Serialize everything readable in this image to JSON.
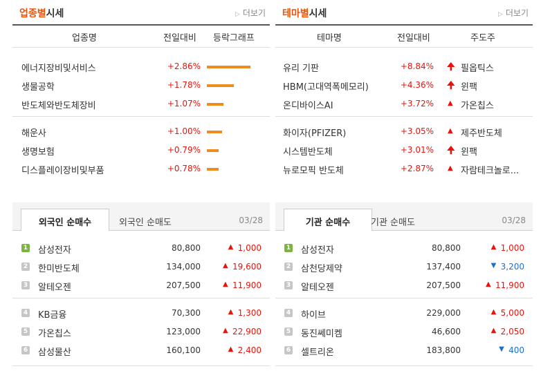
{
  "sector": {
    "title_accent": "업종별",
    "title_rest": "시세",
    "more": "더보기",
    "headers": {
      "name": "업종명",
      "change": "전일대비",
      "graph": "등락그래프"
    },
    "rows": [
      {
        "name": "에너지장비및서비스",
        "change": "+2.86%",
        "bar": 2.86
      },
      {
        "name": "생물공학",
        "change": "+1.78%",
        "bar": 1.78
      },
      {
        "name": "반도체와반도체장비",
        "change": "+1.07%",
        "bar": 1.07
      },
      {
        "name": "해운사",
        "change": "+1.00%",
        "bar": 1.0
      },
      {
        "name": "생명보험",
        "change": "+0.79%",
        "bar": 0.79
      },
      {
        "name": "디스플레이장비및부품",
        "change": "+0.78%",
        "bar": 0.78
      }
    ]
  },
  "theme": {
    "title_accent": "테마별",
    "title_rest": "시세",
    "more": "더보기",
    "headers": {
      "name": "테마명",
      "change": "전일대비",
      "leader": "주도주"
    },
    "rows": [
      {
        "name": "유리 기판",
        "change": "+8.84%",
        "icon": "up-arrow-icon",
        "leader": "필옵틱스"
      },
      {
        "name": "HBM(고대역폭메모리)",
        "change": "+4.36%",
        "icon": "up-arrow-icon",
        "leader": "윈팩"
      },
      {
        "name": "온디바이스AI",
        "change": "+3.72%",
        "icon": "up-triangle-icon",
        "leader": "가온칩스"
      },
      {
        "name": "화이자(PFIZER)",
        "change": "+3.05%",
        "icon": "up-triangle-icon",
        "leader": "제주반도체"
      },
      {
        "name": "시스템반도체",
        "change": "+3.01%",
        "icon": "up-arrow-icon",
        "leader": "윈팩"
      },
      {
        "name": "뉴로모픽 반도체",
        "change": "+2.87%",
        "icon": "up-triangle-icon",
        "leader": "자람테크놀로..."
      }
    ]
  },
  "foreign": {
    "tab_active": "외국인 순매수",
    "tab_inactive": "외국인 순매도",
    "date": "03/28",
    "rows": [
      {
        "rank": "1",
        "name": "삼성전자",
        "price": "80,800",
        "dir": "up",
        "change": "1,000"
      },
      {
        "rank": "2",
        "name": "한미반도체",
        "price": "134,000",
        "dir": "up",
        "change": "19,600"
      },
      {
        "rank": "3",
        "name": "알테오젠",
        "price": "207,500",
        "dir": "up",
        "change": "11,900"
      },
      {
        "rank": "4",
        "name": "KB금융",
        "price": "70,300",
        "dir": "up",
        "change": "1,300"
      },
      {
        "rank": "5",
        "name": "가온칩스",
        "price": "123,000",
        "dir": "up",
        "change": "22,900"
      },
      {
        "rank": "6",
        "name": "삼성물산",
        "price": "160,100",
        "dir": "up",
        "change": "2,400"
      }
    ]
  },
  "institution": {
    "tab_active": "기관 순매수",
    "tab_inactive": "기관 순매도",
    "date": "03/28",
    "rows": [
      {
        "rank": "1",
        "name": "삼성전자",
        "price": "80,800",
        "dir": "up",
        "change": "1,000"
      },
      {
        "rank": "2",
        "name": "삼천당제약",
        "price": "137,400",
        "dir": "down",
        "change": "3,200"
      },
      {
        "rank": "3",
        "name": "알테오젠",
        "price": "207,500",
        "dir": "up",
        "change": "11,900"
      },
      {
        "rank": "4",
        "name": "하이브",
        "price": "229,000",
        "dir": "up",
        "change": "5,000"
      },
      {
        "rank": "5",
        "name": "동진쎄미켐",
        "price": "46,600",
        "dir": "up",
        "change": "2,050"
      },
      {
        "rank": "6",
        "name": "셀트리온",
        "price": "183,800",
        "dir": "down",
        "change": "400"
      }
    ]
  },
  "colors": {
    "accent": "#e8540c",
    "up": "#e8140c",
    "down": "#1a6fd3",
    "bar": "#f08c1d"
  }
}
